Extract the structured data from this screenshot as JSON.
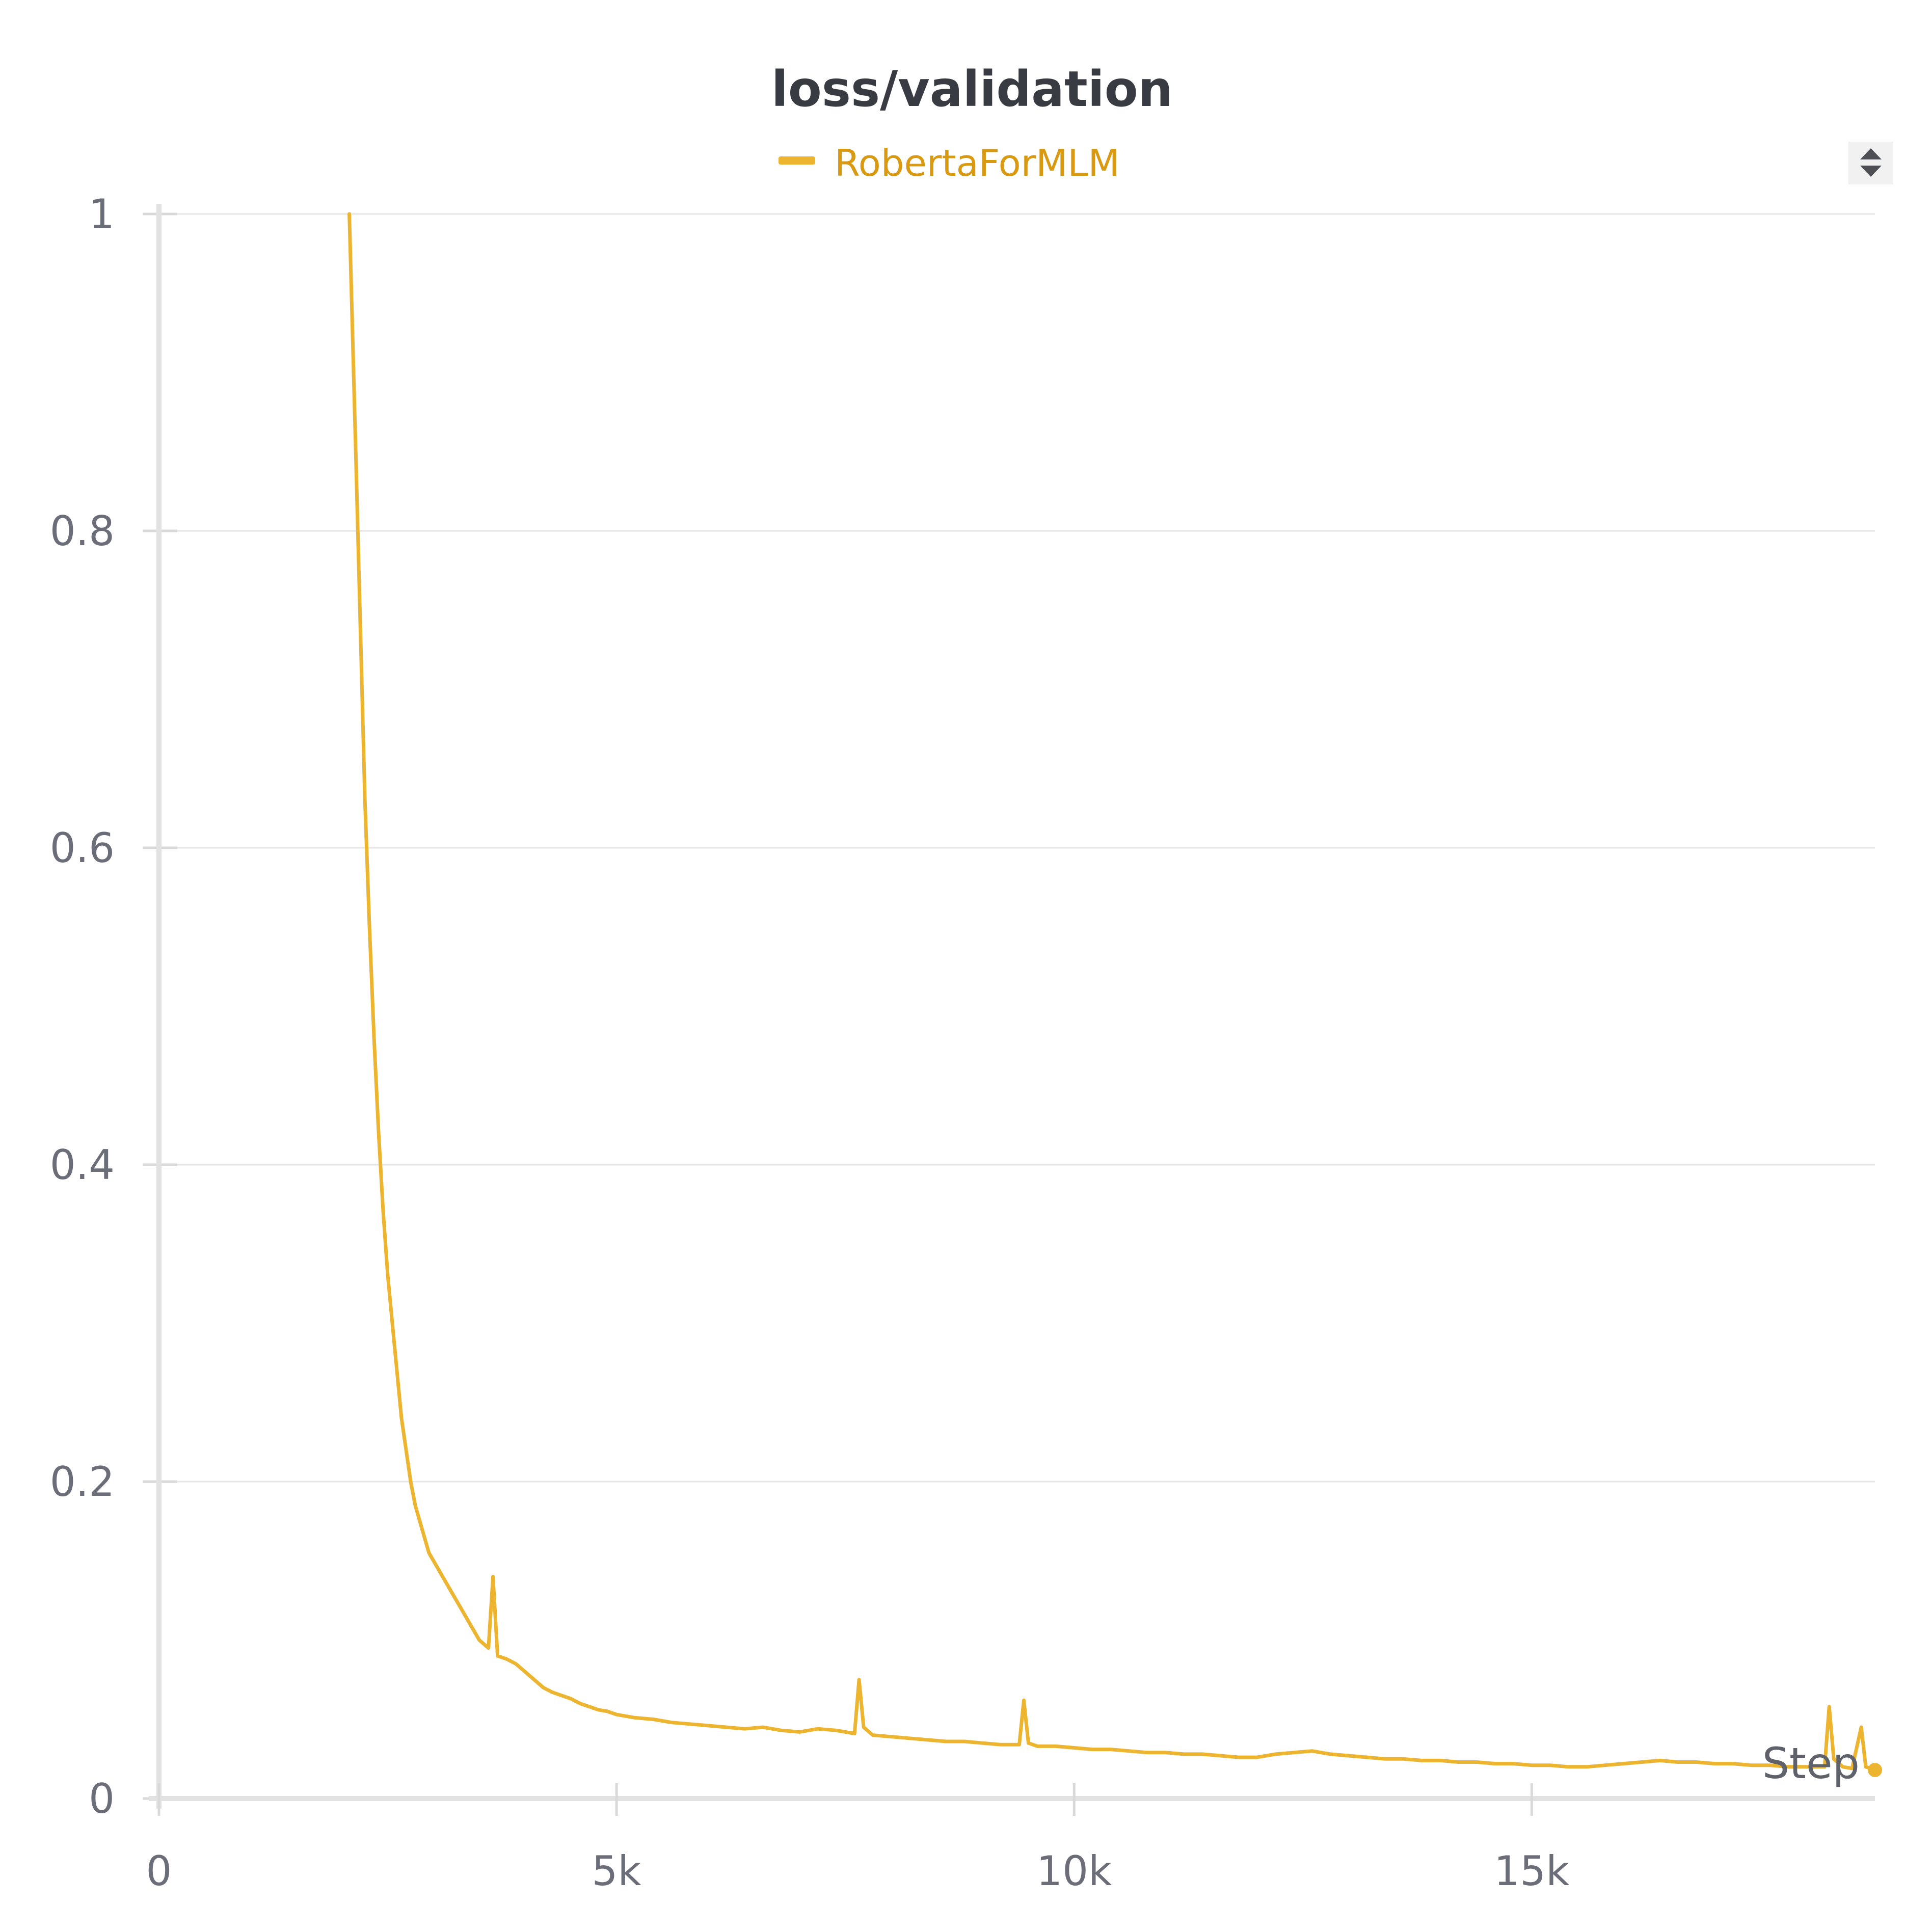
{
  "colors": {
    "series": "#edb52f",
    "legend_text": "#d99a12"
  },
  "controls": {
    "legend_sort_icon": "sort-updown-icon"
  },
  "chart_data": {
    "type": "line",
    "title": "loss/validation",
    "xlabel": "Step",
    "ylabel": "",
    "xlim": [
      0,
      18750
    ],
    "ylim": [
      0,
      1
    ],
    "grid": true,
    "legend_position": "top-center",
    "x_ticks": [
      {
        "value": 0,
        "label": "0"
      },
      {
        "value": 5000,
        "label": "5k"
      },
      {
        "value": 10000,
        "label": "10k"
      },
      {
        "value": 15000,
        "label": "15k"
      }
    ],
    "y_ticks": [
      {
        "value": 0,
        "label": "0"
      },
      {
        "value": 0.2,
        "label": "0.2"
      },
      {
        "value": 0.4,
        "label": "0.4"
      },
      {
        "value": 0.6,
        "label": "0.6"
      },
      {
        "value": 0.8,
        "label": "0.8"
      },
      {
        "value": 1,
        "label": "1"
      }
    ],
    "series": [
      {
        "name": "RobertaForMLM",
        "x": [
          2080,
          2150,
          2200,
          2250,
          2300,
          2350,
          2400,
          2450,
          2500,
          2550,
          2600,
          2650,
          2700,
          2750,
          2800,
          2850,
          2900,
          2950,
          3000,
          3100,
          3200,
          3300,
          3400,
          3500,
          3600,
          3650,
          3700,
          3800,
          3900,
          4000,
          4100,
          4200,
          4300,
          4400,
          4500,
          4600,
          4700,
          4800,
          4900,
          5000,
          5200,
          5400,
          5600,
          5800,
          6000,
          6200,
          6400,
          6600,
          6800,
          7000,
          7200,
          7400,
          7600,
          7650,
          7700,
          7800,
          8000,
          8200,
          8400,
          8600,
          8800,
          9000,
          9200,
          9400,
          9450,
          9500,
          9600,
          9800,
          10000,
          10200,
          10400,
          10600,
          10800,
          11000,
          11200,
          11400,
          11600,
          11800,
          12000,
          12200,
          12400,
          12600,
          12800,
          13000,
          13200,
          13400,
          13600,
          13800,
          14000,
          14200,
          14400,
          14600,
          14800,
          15000,
          15200,
          15400,
          15600,
          15800,
          16000,
          16200,
          16400,
          16600,
          16800,
          17000,
          17200,
          17400,
          17600,
          17800,
          18000,
          18200,
          18250,
          18300,
          18400,
          18500,
          18600,
          18650,
          18750
        ],
        "y": [
          1.0,
          0.85,
          0.74,
          0.63,
          0.55,
          0.48,
          0.42,
          0.37,
          0.33,
          0.3,
          0.27,
          0.24,
          0.22,
          0.2,
          0.185,
          0.175,
          0.165,
          0.155,
          0.15,
          0.14,
          0.13,
          0.12,
          0.11,
          0.1,
          0.095,
          0.14,
          0.09,
          0.088,
          0.085,
          0.08,
          0.075,
          0.07,
          0.067,
          0.065,
          0.063,
          0.06,
          0.058,
          0.056,
          0.055,
          0.053,
          0.051,
          0.05,
          0.048,
          0.047,
          0.046,
          0.045,
          0.044,
          0.045,
          0.043,
          0.042,
          0.044,
          0.043,
          0.041,
          0.075,
          0.045,
          0.04,
          0.039,
          0.038,
          0.037,
          0.036,
          0.036,
          0.035,
          0.034,
          0.034,
          0.062,
          0.035,
          0.033,
          0.033,
          0.032,
          0.031,
          0.031,
          0.03,
          0.029,
          0.029,
          0.028,
          0.028,
          0.027,
          0.026,
          0.026,
          0.028,
          0.029,
          0.03,
          0.028,
          0.027,
          0.026,
          0.025,
          0.025,
          0.024,
          0.024,
          0.023,
          0.023,
          0.022,
          0.022,
          0.021,
          0.021,
          0.02,
          0.02,
          0.021,
          0.022,
          0.023,
          0.024,
          0.023,
          0.023,
          0.022,
          0.022,
          0.021,
          0.021,
          0.02,
          0.02,
          0.02,
          0.058,
          0.025,
          0.02,
          0.019,
          0.045,
          0.02,
          0.018
        ]
      }
    ]
  }
}
